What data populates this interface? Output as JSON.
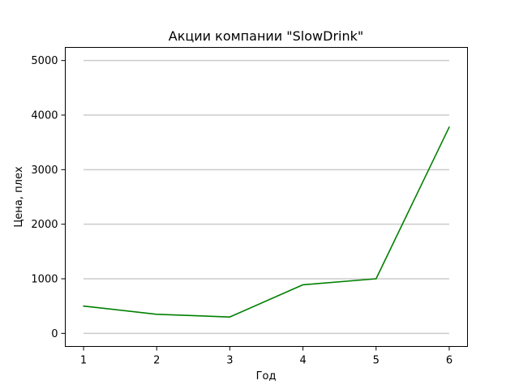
{
  "chart_data": {
    "type": "line",
    "title": "Акции компании \"SlowDrink\"",
    "xlabel": "Год",
    "ylabel": "Цена, плех",
    "x": [
      1,
      2,
      3,
      4,
      5,
      6
    ],
    "series": [
      {
        "values": [
          500,
          350,
          300,
          890,
          1000,
          3780
        ],
        "color": "#008000"
      }
    ],
    "xticks": [
      1,
      2,
      3,
      4,
      5,
      6
    ],
    "yticks": [
      0,
      1000,
      2000,
      3000,
      4000,
      5000
    ],
    "xlim": [
      0.75,
      6.25
    ],
    "ylim": [
      -240,
      5240
    ],
    "grid": "y-only",
    "grid_color": "#cccccc",
    "legend": "none"
  }
}
